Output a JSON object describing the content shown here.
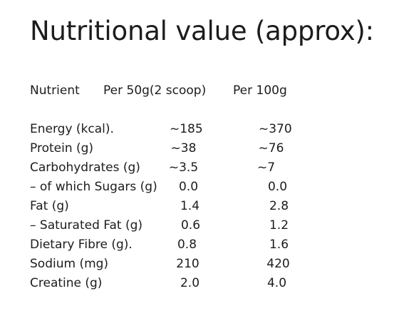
{
  "title": "Nutritional value (approx):",
  "table": {
    "headers": {
      "nutrient": "Nutrient",
      "per_50g": "Per 50g(2 scoop)",
      "per_100g": "Per 100g"
    },
    "rows": [
      {
        "name": "Energy (kcal).",
        "per_50g": "~185",
        "per_100g": "~370"
      },
      {
        "name": "Protein (g)",
        "per_50g": "~38",
        "per_100g": "~76"
      },
      {
        "name": "Carbohydrates (g)",
        "per_50g": "~3.5",
        "per_100g": "~7"
      },
      {
        "name": "– of which Sugars (g)",
        "per_50g": "0.0",
        "per_100g": "0.0"
      },
      {
        "name": "Fat (g)",
        "per_50g": "1.4",
        "per_100g": "2.8"
      },
      {
        "name": "– Saturated Fat (g)",
        "per_50g": "0.6",
        "per_100g": "1.2"
      },
      {
        "name": "Dietary Fibre (g).",
        "per_50g": "0.8",
        "per_100g": "1.6"
      },
      {
        "name": "Sodium (mg)",
        "per_50g": "210",
        "per_100g": "420"
      },
      {
        "name": "Creatine (g)",
        "per_50g": "2.0",
        "per_100g": "4.0"
      }
    ]
  }
}
